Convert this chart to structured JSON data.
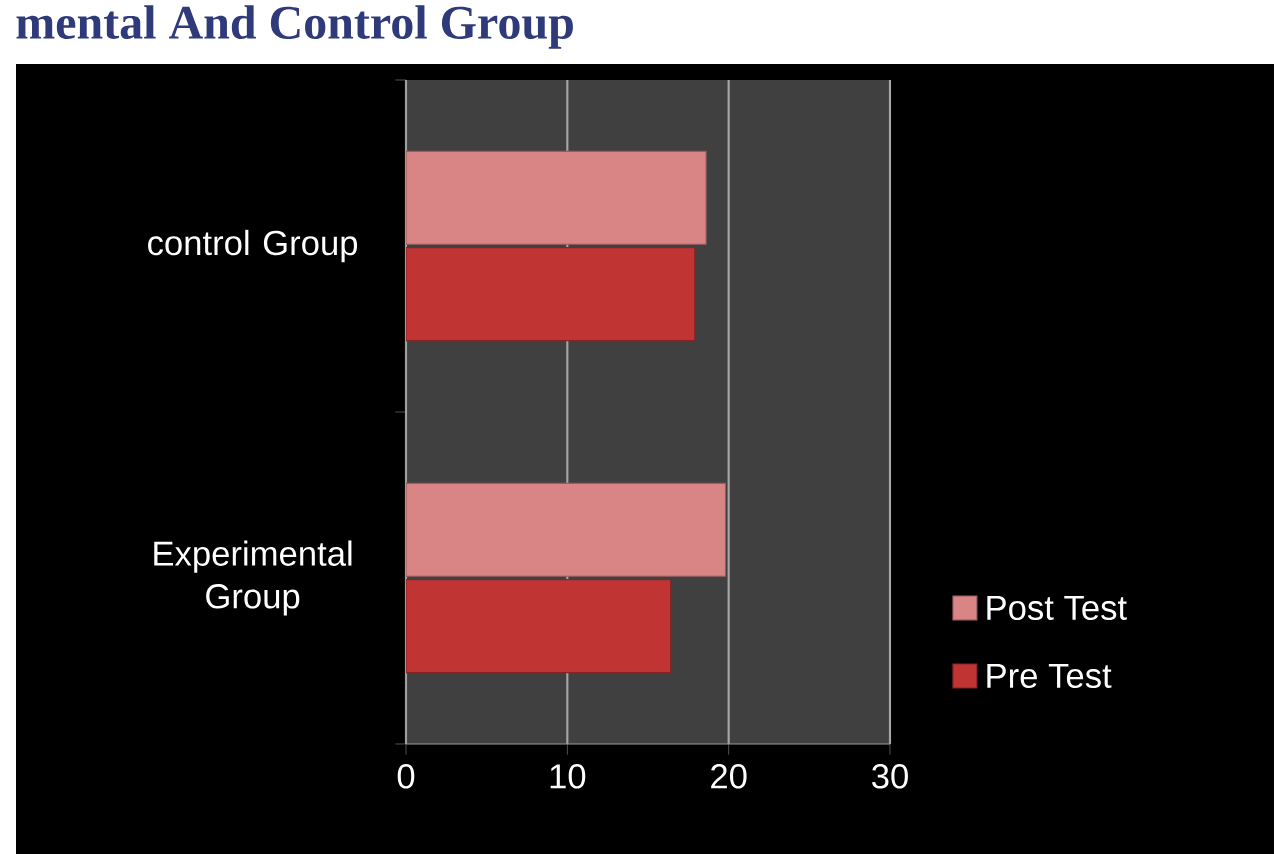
{
  "chart_data": {
    "type": "bar",
    "orientation": "horizontal",
    "title": "mental And Control Group",
    "categories": [
      "control Group",
      "Experimental Group"
    ],
    "series": [
      {
        "name": "Post Test",
        "color": "#d98585",
        "values": [
          18.6,
          19.8
        ]
      },
      {
        "name": "Pre Test",
        "color": "#c03434",
        "values": [
          17.9,
          16.4
        ]
      }
    ],
    "xlim": [
      0,
      30
    ],
    "xticks": [
      0,
      10,
      20,
      30
    ],
    "grid": "x",
    "legend": "right"
  }
}
